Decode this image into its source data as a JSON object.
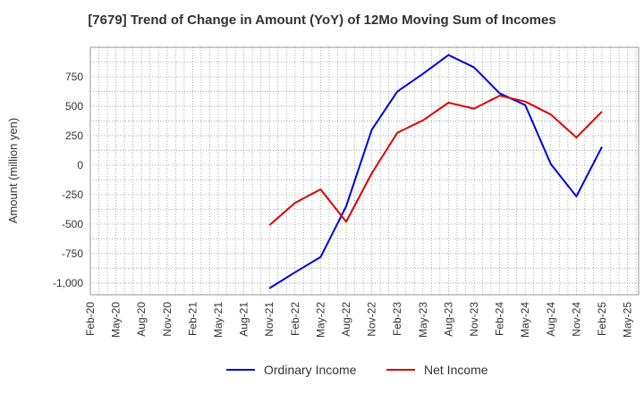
{
  "chart_data": {
    "type": "line",
    "title": "[7679]  Trend of Change in Amount (YoY) of 12Mo Moving Sum of Incomes",
    "xlabel": "",
    "ylabel": "Amount (million yen)",
    "ylim": [
      -1100,
      1000
    ],
    "yticks": [
      750,
      500,
      250,
      0,
      -250,
      -500,
      -750,
      -1000
    ],
    "ytick_labels": [
      "750",
      "500",
      "250",
      "0",
      "-250",
      "-500",
      "-750",
      "-1,000"
    ],
    "x": [
      "Feb-20",
      "May-20",
      "Aug-20",
      "Nov-20",
      "Feb-21",
      "May-21",
      "Aug-21",
      "Nov-21",
      "Feb-22",
      "May-22",
      "Aug-22",
      "Nov-22",
      "Feb-23",
      "May-23",
      "Aug-23",
      "Nov-23",
      "Feb-24",
      "May-24",
      "Aug-24",
      "Nov-24",
      "Feb-25",
      "May-25"
    ],
    "grid": true,
    "legend_position": "bottom-center",
    "series": [
      {
        "name": "Ordinary Income",
        "color": "#0000dd",
        "values": [
          null,
          null,
          null,
          null,
          null,
          null,
          null,
          -1045,
          -910,
          -780,
          -350,
          300,
          625,
          775,
          935,
          830,
          610,
          510,
          10,
          -265,
          155,
          null
        ]
      },
      {
        "name": "Net Income",
        "color": "#dd0000",
        "values": [
          null,
          null,
          null,
          null,
          null,
          null,
          null,
          -510,
          -320,
          -205,
          -480,
          -70,
          275,
          380,
          530,
          480,
          590,
          540,
          430,
          235,
          455,
          null
        ]
      }
    ]
  }
}
